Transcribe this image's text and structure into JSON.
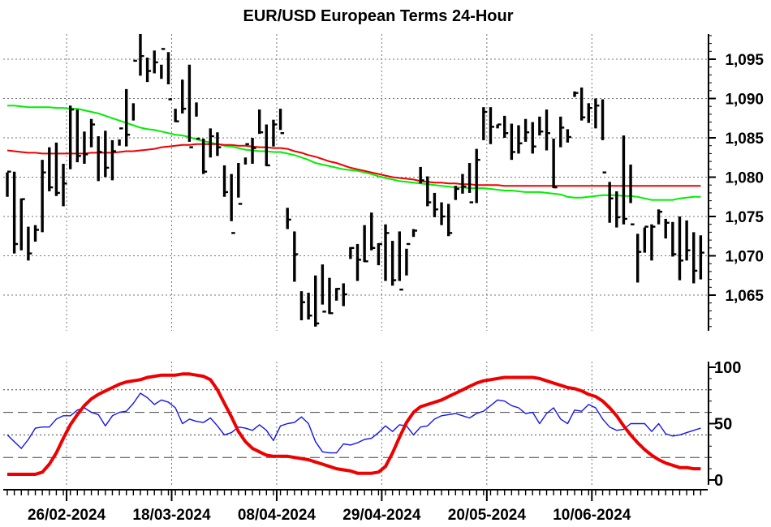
{
  "chart_data": [
    {
      "type": "ohlc",
      "title": "EUR/USD European Terms 24-Hour",
      "ylim": [
        1.0605,
        1.0985
      ],
      "ytick_values": [
        1.065,
        1.07,
        1.075,
        1.08,
        1.085,
        1.09,
        1.095
      ],
      "ytick_labels": [
        "1,065",
        "1,070",
        "1,075",
        "1,080",
        "1,085",
        "1,090",
        "1,095"
      ],
      "grid": true,
      "x_labels": [
        "26/02-2024",
        "18/03-2024",
        "08/04-2024",
        "29/04-2024",
        "20/05-2024",
        "10/06-2024"
      ],
      "x_label_bar_index": [
        8,
        23,
        38,
        53,
        68,
        83
      ],
      "bars": [
        [
          1.0785,
          1.0775,
          1.0806,
          1.0807
        ],
        [
          1.0806,
          1.0807,
          1.0703,
          1.0715
        ],
        [
          1.0715,
          1.0773,
          1.0707,
          1.0772
        ],
        [
          1.0772,
          1.0737,
          1.0694,
          1.0703
        ],
        [
          1.0703,
          1.0739,
          1.0718,
          1.0733
        ],
        [
          1.0733,
          1.0822,
          1.073,
          1.0806
        ],
        [
          1.0806,
          1.0838,
          1.0782,
          1.0787
        ],
        [
          1.0787,
          1.0844,
          1.0776,
          1.078
        ],
        [
          1.078,
          1.0817,
          1.0763,
          1.0792
        ],
        [
          1.0792,
          1.0891,
          1.081,
          1.0886
        ],
        [
          1.0886,
          1.0886,
          1.0819,
          1.0827
        ],
        [
          1.0827,
          1.0858,
          1.0817,
          1.0829
        ],
        [
          1.0829,
          1.0874,
          1.0838,
          1.0867
        ],
        [
          1.0867,
          1.0852,
          1.0795,
          1.0832
        ],
        [
          1.0832,
          1.0859,
          1.08,
          1.0812
        ],
        [
          1.0812,
          1.0847,
          1.0796,
          1.0833
        ],
        [
          1.0833,
          1.084,
          1.0848,
          1.0862
        ],
        [
          1.0862,
          1.0912,
          1.0839,
          1.0854
        ],
        [
          1.0854,
          1.0872,
          1.0894,
          1.0948
        ],
        [
          1.0948,
          1.0982,
          1.0929,
          1.0954
        ],
        [
          1.0954,
          1.0952,
          1.0921,
          1.0935
        ],
        [
          1.0935,
          1.0961,
          1.0932,
          1.0946
        ],
        [
          1.0946,
          1.0943,
          1.0925,
          1.0963
        ],
        [
          1.0963,
          1.0959,
          1.0918,
          1.0899
        ],
        [
          1.0899,
          1.0887,
          1.087,
          1.0871
        ],
        [
          1.0871,
          1.0924,
          1.0881,
          1.0887
        ],
        [
          1.0887,
          1.0943,
          1.0845,
          1.0838
        ],
        [
          1.0838,
          1.0895,
          1.0877,
          1.0849
        ],
        [
          1.0849,
          1.0849,
          1.0804,
          1.0807
        ],
        [
          1.0807,
          1.0862,
          1.0825,
          1.0852
        ],
        [
          1.0852,
          1.0857,
          1.0827,
          1.0838
        ],
        [
          1.0838,
          1.0815,
          1.0775,
          1.0781
        ],
        [
          1.0781,
          1.0804,
          1.0744,
          1.0729
        ],
        [
          1.0729,
          1.0818,
          1.0774,
          1.0766
        ],
        [
          1.0766,
          1.0825,
          1.0816,
          1.0842
        ],
        [
          1.0842,
          1.085,
          1.0817,
          1.0837
        ],
        [
          1.0837,
          1.0886,
          1.0855,
          1.0857
        ],
        [
          1.0857,
          1.0867,
          1.0814,
          1.0815
        ],
        [
          1.0815,
          1.0873,
          1.0839,
          1.0867
        ],
        [
          1.0867,
          1.0887,
          1.086,
          1.0856
        ],
        [
          1.0856,
          1.0761,
          1.0734,
          1.0746
        ],
        [
          1.0746,
          1.0731,
          1.0667,
          1.0702
        ],
        [
          1.0702,
          1.0655,
          1.0618,
          1.0641
        ],
        [
          1.0641,
          1.0653,
          1.0619,
          1.0624
        ],
        [
          1.0624,
          1.0675,
          1.061,
          1.0614
        ],
        [
          1.0614,
          1.0689,
          1.0638,
          1.0629
        ],
        [
          1.0629,
          1.0672,
          1.0626,
          1.0627
        ],
        [
          1.0627,
          1.0659,
          1.0643,
          1.0658
        ],
        [
          1.0658,
          1.0665,
          1.0636,
          1.0651
        ],
        [
          1.0651,
          1.0711,
          1.0696,
          1.071
        ],
        [
          1.071,
          1.0715,
          1.0668,
          1.0695
        ],
        [
          1.0695,
          1.0739,
          1.0692,
          1.0693
        ],
        [
          1.0693,
          1.0755,
          1.0707,
          1.071
        ],
        [
          1.071,
          1.0716,
          1.0688,
          1.0715
        ],
        [
          1.0715,
          1.074,
          1.0668,
          1.0729
        ],
        [
          1.0729,
          1.0719,
          1.0662,
          1.0669
        ],
        [
          1.0669,
          1.0731,
          1.0668,
          1.0657
        ],
        [
          1.0657,
          1.0709,
          1.0675,
          1.0715
        ],
        [
          1.0715,
          1.0734,
          1.0724,
          1.0732
        ],
        [
          1.0732,
          1.0813,
          1.0792,
          1.0796
        ],
        [
          1.0796,
          1.0801,
          1.0763,
          1.0768
        ],
        [
          1.0768,
          1.078,
          1.0749,
          1.0759
        ],
        [
          1.0759,
          1.0768,
          1.0739,
          1.075
        ],
        [
          1.075,
          1.0766,
          1.0725,
          1.0729
        ],
        [
          1.0729,
          1.0789,
          1.0771,
          1.0785
        ],
        [
          1.0785,
          1.0804,
          1.0779,
          1.0788
        ],
        [
          1.0788,
          1.0818,
          1.078,
          1.0768
        ],
        [
          1.0768,
          1.0836,
          1.0767,
          1.0822
        ],
        [
          1.0822,
          1.0889,
          1.0847,
          1.0883
        ],
        [
          1.0883,
          1.0889,
          1.0842,
          1.0864
        ],
        [
          1.0864,
          1.0867,
          1.0862,
          1.0867
        ],
        [
          1.0867,
          1.0878,
          1.085,
          1.0856
        ],
        [
          1.0856,
          1.0868,
          1.0822,
          1.0832
        ],
        [
          1.0832,
          1.0866,
          1.083,
          1.0843
        ],
        [
          1.0843,
          1.0874,
          1.0845,
          1.0857
        ],
        [
          1.0857,
          1.087,
          1.083,
          1.0839
        ],
        [
          1.0839,
          1.0877,
          1.0853,
          1.0858
        ],
        [
          1.0858,
          1.0886,
          1.0834,
          1.0856
        ],
        [
          1.0856,
          1.0849,
          1.0786,
          1.0787
        ],
        [
          1.0787,
          1.0877,
          1.0838,
          1.0863
        ],
        [
          1.0863,
          1.0861,
          1.0844,
          1.0851
        ],
        [
          1.0851,
          1.0909,
          1.0902,
          1.0907
        ],
        [
          1.0907,
          1.0914,
          1.0872,
          1.0876
        ],
        [
          1.0876,
          1.0894,
          1.0869,
          1.0888
        ],
        [
          1.0888,
          1.09,
          1.0862,
          1.0891
        ],
        [
          1.0891,
          1.0899,
          1.0847,
          1.0806
        ],
        [
          1.0806,
          1.0794,
          1.0742,
          1.0773
        ],
        [
          1.0773,
          1.0782,
          1.0736,
          1.0749
        ],
        [
          1.0749,
          1.0853,
          1.074,
          1.0747
        ],
        [
          1.0747,
          1.0816,
          1.0767,
          1.074
        ],
        [
          1.074,
          1.0728,
          1.0666,
          1.0705
        ],
        [
          1.0705,
          1.0736,
          1.0704,
          1.0737
        ],
        [
          1.0737,
          1.074,
          1.0694,
          1.0737
        ],
        [
          1.0737,
          1.0759,
          1.074,
          1.0756
        ],
        [
          1.0756,
          1.0747,
          1.0722,
          1.0742
        ],
        [
          1.0742,
          1.0743,
          1.0699,
          1.0702
        ],
        [
          1.0702,
          1.075,
          1.0669,
          1.0694
        ],
        [
          1.0694,
          1.0745,
          1.0694,
          1.0707
        ],
        [
          1.0707,
          1.073,
          1.0665,
          1.0681
        ],
        [
          1.0681,
          1.0726,
          1.067,
          1.0704
        ]
      ],
      "series": [
        {
          "color": "#00ee00",
          "values": [
            1.0891,
            1.0891,
            1.089,
            1.0889,
            1.0889,
            1.0889,
            1.0889,
            1.0888,
            1.0888,
            1.0887,
            1.0887,
            1.0885,
            1.0883,
            1.0881,
            1.0878,
            1.0875,
            1.0872,
            1.0869,
            1.0866,
            1.0863,
            1.0861,
            1.086,
            1.0858,
            1.0856,
            1.0854,
            1.0853,
            1.0851,
            1.0848,
            1.0846,
            1.0844,
            1.0842,
            1.084,
            1.0839,
            1.0837,
            1.0835,
            1.0834,
            1.0833,
            1.0833,
            1.0832,
            1.0832,
            1.083,
            1.0828,
            1.0825,
            1.0822,
            1.0818,
            1.0816,
            1.0814,
            1.0812,
            1.081,
            1.0809,
            1.0808,
            1.0806,
            1.0804,
            1.0801,
            1.0799,
            1.0797,
            1.0795,
            1.0794,
            1.0793,
            1.0792,
            1.0791,
            1.079,
            1.0789,
            1.0788,
            1.0787,
            1.0787,
            1.0786,
            1.0786,
            1.0786,
            1.0785,
            1.0784,
            1.0783,
            1.0783,
            1.0782,
            1.0781,
            1.0781,
            1.0781,
            1.078,
            1.0779,
            1.0778,
            1.0775,
            1.0774,
            1.0774,
            1.0775,
            1.0776,
            1.0777,
            1.0777,
            1.0777,
            1.0776,
            1.0776,
            1.0775,
            1.0773,
            1.0771,
            1.0771,
            1.0771,
            1.0771,
            1.0773,
            1.0774,
            1.0775,
            1.0775
          ]
        },
        {
          "color": "#ee0000",
          "values": [
            1.0834,
            1.0833,
            1.0832,
            1.0831,
            1.0831,
            1.083,
            1.083,
            1.083,
            1.083,
            1.083,
            1.083,
            1.083,
            1.0831,
            1.0831,
            1.0831,
            1.0831,
            1.0832,
            1.0833,
            1.0833,
            1.0834,
            1.0835,
            1.0836,
            1.0838,
            1.0839,
            1.084,
            1.0841,
            1.0841,
            1.0842,
            1.0842,
            1.0842,
            1.0842,
            1.0841,
            1.0841,
            1.084,
            1.084,
            1.0839,
            1.0838,
            1.0838,
            1.0837,
            1.0837,
            1.0836,
            1.0833,
            1.0831,
            1.0828,
            1.0826,
            1.0823,
            1.082,
            1.0818,
            1.0815,
            1.0812,
            1.081,
            1.0808,
            1.0806,
            1.0804,
            1.0802,
            1.08,
            1.0799,
            1.0798,
            1.0797,
            1.0795,
            1.0794,
            1.0793,
            1.0793,
            1.0792,
            1.0792,
            1.0791,
            1.0791,
            1.079,
            1.079,
            1.079,
            1.079,
            1.0789,
            1.0789,
            1.0789,
            1.0789,
            1.0789,
            1.0789,
            1.0789,
            1.0789,
            1.0789,
            1.0789,
            1.0789,
            1.0789,
            1.0789,
            1.0789,
            1.0789,
            1.0789,
            1.0789,
            1.0789,
            1.0789,
            1.0789,
            1.0789,
            1.0789,
            1.0789,
            1.0789,
            1.0789,
            1.0789,
            1.0789,
            1.0789,
            1.0789
          ]
        }
      ]
    },
    {
      "type": "line",
      "ylim": [
        0,
        100
      ],
      "ytick_values": [
        0,
        50,
        100
      ],
      "ytick_labels": [
        "0",
        "50",
        "100"
      ],
      "reference_lines": [
        80,
        60,
        40,
        20
      ],
      "series": [
        {
          "color": "#1515ee",
          "values": [
            40,
            34,
            28,
            36,
            46,
            47,
            47,
            54,
            57,
            57,
            62,
            64,
            60,
            58,
            48,
            57,
            60,
            61,
            68,
            77,
            73,
            67,
            71,
            69,
            64,
            50,
            54,
            52,
            51,
            55,
            48,
            40,
            42,
            47,
            46,
            44,
            49,
            44,
            35,
            48,
            50,
            51,
            56,
            50,
            34,
            25,
            24,
            24,
            32,
            31,
            33,
            36,
            37,
            42,
            48,
            43,
            49,
            48,
            40,
            47,
            48,
            54,
            57,
            58,
            59,
            57,
            55,
            59,
            61,
            66,
            71,
            70,
            66,
            64,
            59,
            60,
            50,
            59,
            64,
            54,
            50,
            62,
            61,
            67,
            64,
            54,
            47,
            44,
            45,
            50,
            50,
            50,
            43,
            50,
            41,
            39,
            40,
            42,
            44,
            46
          ]
        },
        {
          "color": "#ee0000",
          "values": [
            5,
            5,
            5,
            5,
            5,
            7,
            14,
            24,
            37,
            49,
            58,
            66,
            72,
            76,
            79,
            82,
            85,
            87,
            88,
            89,
            91,
            92,
            93,
            93,
            93,
            94,
            94,
            93,
            92,
            89,
            80,
            68,
            56,
            43,
            34,
            28,
            25,
            22,
            21,
            21,
            21,
            20,
            19,
            18,
            16,
            14,
            12,
            10,
            9,
            8,
            6,
            6,
            6,
            7,
            12,
            24,
            38,
            51,
            60,
            65,
            67,
            69,
            71,
            74,
            77,
            80,
            83,
            86,
            88,
            89,
            90,
            91,
            91,
            91,
            91,
            91,
            90,
            88,
            86,
            84,
            82,
            81,
            79,
            76,
            74,
            70,
            64,
            57,
            48,
            40,
            33,
            27,
            22,
            18,
            15,
            13,
            11,
            11,
            10,
            10
          ]
        }
      ]
    }
  ]
}
